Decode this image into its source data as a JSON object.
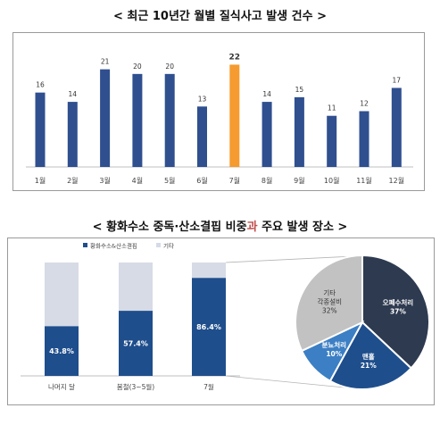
{
  "chart_data": [
    {
      "type": "bar",
      "title": "< 최근 10년간 월별 질식사고 발생 건수 >",
      "categories": [
        "1월",
        "2월",
        "3월",
        "4월",
        "5월",
        "6월",
        "7월",
        "8월",
        "9월",
        "10월",
        "11월",
        "12월"
      ],
      "values": [
        16,
        14,
        21,
        20,
        20,
        13,
        22,
        14,
        15,
        11,
        12,
        17
      ],
      "highlight_index": 6,
      "colors": {
        "bar": "#2f4f8f",
        "highlight": "#f59b2f"
      },
      "ylim": [
        0,
        24
      ],
      "grid": false
    },
    {
      "type": "bar",
      "stacked": true,
      "title_parts": [
        "< 황화수소 중독·산소결핍 비중",
        "과",
        " 주요 발생 장소 >"
      ],
      "categories": [
        "나머지 달",
        "봄철(3~5월)",
        "7월"
      ],
      "series": [
        {
          "name": "황화수소&산소결핍",
          "values": [
            43.8,
            57.4,
            86.4
          ],
          "labels": [
            "43.8%",
            "57.4%",
            "86.4%"
          ]
        },
        {
          "name": "기타",
          "values": [
            56.2,
            42.6,
            13.6
          ]
        }
      ],
      "colors": {
        "primary": "#1f4e8c",
        "other": "#d6dbe6"
      },
      "legend": "top-left",
      "ylim": [
        0,
        100
      ]
    },
    {
      "type": "pie",
      "slices": [
        {
          "label": "오폐수처리",
          "value": 37,
          "pct": "37%",
          "color": "#2e3a4f"
        },
        {
          "label": "맨홀",
          "value": 21,
          "pct": "21%",
          "color": "#1f4e8c"
        },
        {
          "label": "분뇨처리",
          "value": 10,
          "pct": "10%",
          "color": "#3c7fc4"
        },
        {
          "label": "기타\n각종설비",
          "value": 32,
          "pct": "32%",
          "color": "#c2c2c2"
        }
      ]
    }
  ]
}
